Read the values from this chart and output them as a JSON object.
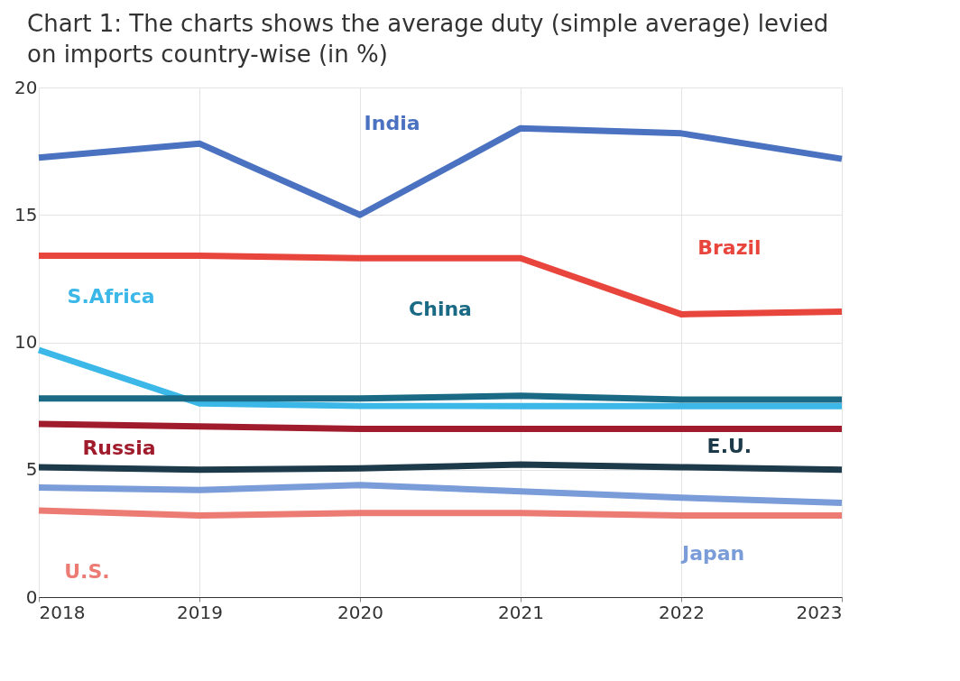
{
  "chart_data": {
    "type": "line",
    "title": "Chart 1: The charts shows the average duty (simple average) levied on imports country-wise (in %)",
    "x": [
      2018,
      2019,
      2020,
      2021,
      2022,
      2023
    ],
    "series": [
      {
        "name": "India",
        "color": "#4a72c0",
        "values": [
          17.25,
          17.8,
          15.0,
          18.4,
          18.2,
          17.2
        ]
      },
      {
        "name": "Brazil",
        "color": "#e8453c",
        "values": [
          13.4,
          13.4,
          13.3,
          13.3,
          11.1,
          11.2
        ]
      },
      {
        "name": "S.Africa",
        "color": "#3bb8e8",
        "values": [
          9.7,
          7.6,
          7.5,
          7.5,
          7.5,
          7.5
        ]
      },
      {
        "name": "China",
        "color": "#1a6a85",
        "values": [
          7.8,
          7.8,
          7.8,
          7.9,
          7.75,
          7.75
        ]
      },
      {
        "name": "Russia",
        "color": "#a01c2c",
        "values": [
          6.8,
          6.7,
          6.6,
          6.6,
          6.6,
          6.6
        ]
      },
      {
        "name": "E.U.",
        "color": "#1c3a4a",
        "values": [
          5.1,
          5.0,
          5.05,
          5.2,
          5.1,
          5.0
        ]
      },
      {
        "name": "Japan",
        "color": "#7a9cd8",
        "values": [
          4.3,
          4.2,
          4.4,
          4.15,
          3.9,
          3.7
        ]
      },
      {
        "name": "U.S.",
        "color": "#ec7b74",
        "values": [
          3.4,
          3.2,
          3.3,
          3.3,
          3.2,
          3.2
        ]
      }
    ],
    "xlim": [
      2018,
      2023
    ],
    "xticks": [
      2018,
      2019,
      2020,
      2021,
      2022,
      2023
    ],
    "ylim": [
      0,
      20
    ],
    "yticks": [
      0,
      5,
      10,
      15,
      20
    ],
    "grid": true,
    "legend": false,
    "line_style": "solid",
    "marker": "none"
  }
}
